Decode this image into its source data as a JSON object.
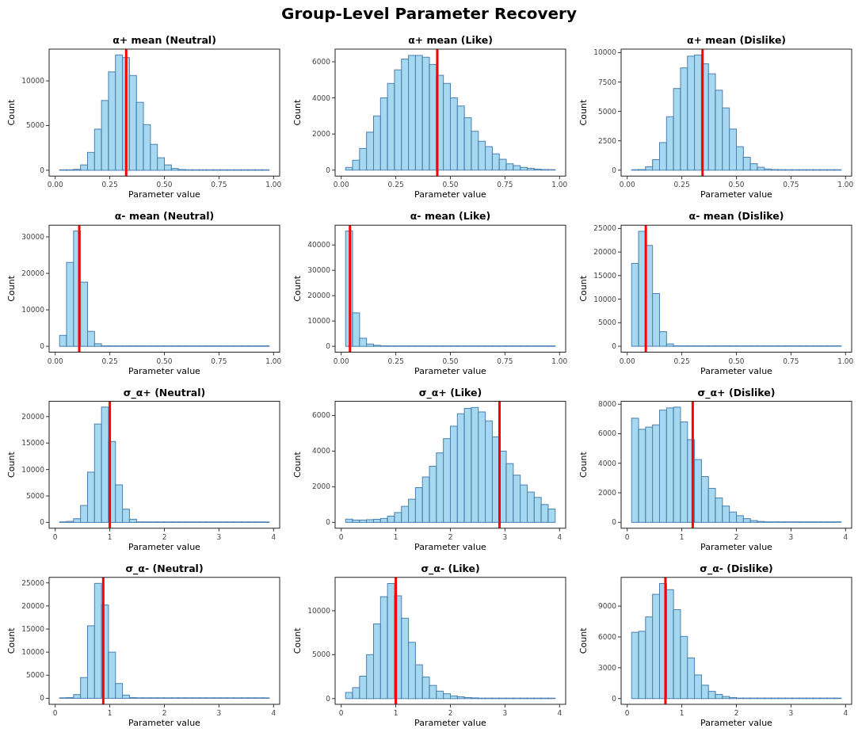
{
  "chart_data": [
    {
      "type": "histogram",
      "title": "α+ mean (Neutral)",
      "xlabel": "Parameter value",
      "ylabel": "Count",
      "annotations": [
        "Group-Level Parameter Recovery"
      ],
      "color": "#a6d9ef",
      "grid": false,
      "bins": [
        0.02,
        0.052,
        0.084,
        0.116,
        0.148,
        0.18,
        0.212,
        0.244,
        0.276,
        0.308,
        0.34,
        0.372,
        0.404,
        0.436,
        0.468,
        0.5,
        0.532,
        0.564,
        0.596,
        0.628,
        0.66,
        0.692,
        0.724,
        0.756,
        0.788,
        0.82,
        0.852,
        0.884,
        0.916,
        0.948,
        0.98
      ],
      "values": [
        10,
        20,
        100,
        600,
        2000,
        4600,
        7800,
        11000,
        12900,
        12600,
        10600,
        7600,
        5100,
        2900,
        1400,
        600,
        200,
        80,
        50,
        30,
        20,
        10,
        10,
        0,
        0,
        0,
        0,
        0,
        0,
        0
      ],
      "xlim": [
        -0.028,
        1.028
      ],
      "xticks": [
        {
          "value": 0,
          "label": "0.00"
        },
        {
          "value": 0.25,
          "label": "0.25"
        },
        {
          "value": 0.5,
          "label": "0.50"
        },
        {
          "value": 0.75,
          "label": "0.75"
        },
        {
          "value": 1,
          "label": "1.00"
        }
      ],
      "ylim": [
        -650,
        13550
      ],
      "yticks": [
        0,
        5000,
        10000
      ],
      "ref_lines": [
        {
          "axis": "x",
          "value": 0.325,
          "color": "#ff0000"
        }
      ]
    },
    {
      "type": "histogram",
      "title": "α+ mean (Like)",
      "xlabel": "Parameter value",
      "ylabel": "Count",
      "color": "#a6d9ef",
      "grid": false,
      "bins": [
        0.02,
        0.052,
        0.084,
        0.116,
        0.148,
        0.18,
        0.212,
        0.244,
        0.276,
        0.308,
        0.34,
        0.372,
        0.404,
        0.436,
        0.468,
        0.5,
        0.532,
        0.564,
        0.596,
        0.628,
        0.66,
        0.692,
        0.724,
        0.756,
        0.788,
        0.82,
        0.852,
        0.884,
        0.916,
        0.948,
        0.98
      ],
      "values": [
        150,
        550,
        1200,
        2100,
        3000,
        4000,
        4800,
        5550,
        6150,
        6350,
        6350,
        6250,
        5850,
        5250,
        4800,
        4000,
        3550,
        2900,
        2150,
        1600,
        1300,
        900,
        600,
        350,
        250,
        150,
        100,
        50,
        30,
        10
      ],
      "xlim": [
        -0.028,
        1.028
      ],
      "xticks": [
        {
          "value": 0,
          "label": "0.00"
        },
        {
          "value": 0.25,
          "label": "0.25"
        },
        {
          "value": 0.5,
          "label": "0.50"
        },
        {
          "value": 0.75,
          "label": "0.75"
        },
        {
          "value": 1,
          "label": "1.00"
        }
      ],
      "ylim": [
        -330,
        6700
      ],
      "yticks": [
        0,
        2000,
        4000,
        6000
      ],
      "ref_lines": [
        {
          "axis": "x",
          "value": 0.44,
          "color": "#ff0000"
        }
      ]
    },
    {
      "type": "histogram",
      "title": "α+ mean (Dislike)",
      "xlabel": "Parameter value",
      "ylabel": "Count",
      "color": "#a6d9ef",
      "grid": false,
      "bins": [
        0.02,
        0.052,
        0.084,
        0.116,
        0.148,
        0.18,
        0.212,
        0.244,
        0.276,
        0.308,
        0.34,
        0.372,
        0.404,
        0.436,
        0.468,
        0.5,
        0.532,
        0.564,
        0.596,
        0.628,
        0.66,
        0.692,
        0.724,
        0.756,
        0.788,
        0.82,
        0.852,
        0.884,
        0.916,
        0.948,
        0.98
      ],
      "values": [
        10,
        50,
        300,
        900,
        2350,
        4550,
        6950,
        8700,
        9700,
        9800,
        9050,
        8200,
        6800,
        5300,
        3500,
        2000,
        1100,
        550,
        250,
        100,
        50,
        20,
        10,
        5,
        0,
        0,
        0,
        0,
        0,
        0
      ],
      "xlim": [
        -0.028,
        1.028
      ],
      "xticks": [
        {
          "value": 0,
          "label": "0.00"
        },
        {
          "value": 0.25,
          "label": "0.25"
        },
        {
          "value": 0.5,
          "label": "0.50"
        },
        {
          "value": 0.75,
          "label": "0.75"
        },
        {
          "value": 1,
          "label": "1.00"
        }
      ],
      "ylim": [
        -500,
        10300
      ],
      "yticks": [
        0,
        2500,
        5000,
        7500,
        10000
      ],
      "ref_lines": [
        {
          "axis": "x",
          "value": 0.345,
          "color": "#ff0000"
        }
      ]
    },
    {
      "type": "histogram",
      "title": "α- mean (Neutral)",
      "xlabel": "Parameter value",
      "ylabel": "Count",
      "color": "#a6d9ef",
      "grid": false,
      "bins": [
        0.02,
        0.052,
        0.084,
        0.116,
        0.148,
        0.18,
        0.212,
        0.244,
        0.276,
        0.308,
        0.34,
        0.372,
        0.404,
        0.436,
        0.468,
        0.5,
        0.532,
        0.564,
        0.596,
        0.628,
        0.66,
        0.692,
        0.724,
        0.756,
        0.788,
        0.82,
        0.852,
        0.884,
        0.916,
        0.948,
        0.98
      ],
      "values": [
        3000,
        23000,
        31600,
        17600,
        4100,
        700,
        100,
        30,
        10,
        0,
        0,
        0,
        0,
        0,
        0,
        0,
        0,
        0,
        0,
        0,
        0,
        0,
        0,
        0,
        0,
        0,
        0,
        0,
        0,
        0
      ],
      "xlim": [
        -0.028,
        1.028
      ],
      "xticks": [
        {
          "value": 0,
          "label": "0.00"
        },
        {
          "value": 0.25,
          "label": "0.25"
        },
        {
          "value": 0.5,
          "label": "0.50"
        },
        {
          "value": 0.75,
          "label": "0.75"
        },
        {
          "value": 1,
          "label": "1.00"
        }
      ],
      "ylim": [
        -1600,
        33200
      ],
      "yticks": [
        0,
        10000,
        20000,
        30000
      ],
      "ref_lines": [
        {
          "axis": "x",
          "value": 0.11,
          "color": "#ff0000"
        }
      ]
    },
    {
      "type": "histogram",
      "title": "α- mean (Like)",
      "xlabel": "Parameter value",
      "ylabel": "Count",
      "color": "#a6d9ef",
      "grid": false,
      "bins": [
        0.02,
        0.052,
        0.084,
        0.116,
        0.148,
        0.18,
        0.212,
        0.244,
        0.276,
        0.308,
        0.34,
        0.372,
        0.404,
        0.436,
        0.468,
        0.5,
        0.532,
        0.564,
        0.596,
        0.628,
        0.66,
        0.692,
        0.724,
        0.756,
        0.788,
        0.82,
        0.852,
        0.884,
        0.916,
        0.948,
        0.98
      ],
      "values": [
        45500,
        13200,
        3200,
        900,
        400,
        200,
        100,
        50,
        30,
        20,
        0,
        0,
        0,
        0,
        0,
        0,
        0,
        0,
        0,
        0,
        0,
        0,
        0,
        0,
        0,
        0,
        0,
        0,
        0,
        0
      ],
      "xlim": [
        -0.028,
        1.028
      ],
      "xticks": [
        {
          "value": 0,
          "label": "0.00"
        },
        {
          "value": 0.25,
          "label": "0.25"
        },
        {
          "value": 0.5,
          "label": "0.50"
        },
        {
          "value": 0.75,
          "label": "0.75"
        },
        {
          "value": 1,
          "label": "1.00"
        }
      ],
      "ylim": [
        -2300,
        47800
      ],
      "yticks": [
        0,
        10000,
        20000,
        30000,
        40000
      ],
      "ref_lines": [
        {
          "axis": "x",
          "value": 0.04,
          "color": "#ff0000"
        }
      ]
    },
    {
      "type": "histogram",
      "title": "α- mean (Dislike)",
      "xlabel": "Parameter value",
      "ylabel": "Count",
      "color": "#a6d9ef",
      "grid": false,
      "bins": [
        0.02,
        0.052,
        0.084,
        0.116,
        0.148,
        0.18,
        0.212,
        0.244,
        0.276,
        0.308,
        0.34,
        0.372,
        0.404,
        0.436,
        0.468,
        0.5,
        0.532,
        0.564,
        0.596,
        0.628,
        0.66,
        0.692,
        0.724,
        0.756,
        0.788,
        0.82,
        0.852,
        0.884,
        0.916,
        0.948,
        0.98
      ],
      "values": [
        17600,
        24400,
        21400,
        11200,
        3100,
        500,
        100,
        30,
        0,
        0,
        0,
        0,
        0,
        0,
        0,
        0,
        0,
        0,
        0,
        0,
        0,
        0,
        0,
        0,
        0,
        0,
        0,
        0,
        0,
        0
      ],
      "xlim": [
        -0.028,
        1.028
      ],
      "xticks": [
        {
          "value": 0,
          "label": "0.00"
        },
        {
          "value": 0.25,
          "label": "0.25"
        },
        {
          "value": 0.5,
          "label": "0.50"
        },
        {
          "value": 0.75,
          "label": "0.75"
        },
        {
          "value": 1,
          "label": "1.00"
        }
      ],
      "ylim": [
        -1250,
        25700
      ],
      "yticks": [
        0,
        5000,
        10000,
        15000,
        20000,
        25000
      ],
      "ref_lines": [
        {
          "axis": "x",
          "value": 0.085,
          "color": "#ff0000"
        }
      ]
    },
    {
      "type": "histogram",
      "title": "σ_α+ (Neutral)",
      "xlabel": "Parameter value",
      "ylabel": "Count",
      "color": "#a6d9ef",
      "grid": false,
      "bins": [
        0.08,
        0.208,
        0.336,
        0.464,
        0.592,
        0.72,
        0.848,
        0.976,
        1.104,
        1.232,
        1.36,
        1.488,
        1.616,
        1.744,
        1.872,
        2,
        2.128,
        2.256,
        2.384,
        2.512,
        2.64,
        2.768,
        2.896,
        3.024,
        3.152,
        3.28,
        3.408,
        3.536,
        3.664,
        3.792,
        3.92
      ],
      "values": [
        100,
        200,
        700,
        3200,
        9500,
        18600,
        21800,
        15300,
        7100,
        2500,
        600,
        100,
        50,
        20,
        10,
        0,
        0,
        0,
        0,
        0,
        0,
        0,
        0,
        0,
        0,
        0,
        0,
        0,
        0,
        0
      ],
      "xlim": [
        -0.112,
        4.112
      ],
      "xticks": [
        0,
        1,
        2,
        3,
        4
      ],
      "ylim": [
        -1100,
        22900
      ],
      "yticks": [
        0,
        5000,
        10000,
        15000,
        20000
      ],
      "ref_lines": [
        {
          "axis": "x",
          "value": 1.0,
          "color": "#ff0000"
        }
      ]
    },
    {
      "type": "histogram",
      "title": "σ_α+ (Like)",
      "xlabel": "Parameter value",
      "ylabel": "Count",
      "color": "#a6d9ef",
      "grid": false,
      "bins": [
        0.08,
        0.208,
        0.336,
        0.464,
        0.592,
        0.72,
        0.848,
        0.976,
        1.104,
        1.232,
        1.36,
        1.488,
        1.616,
        1.744,
        1.872,
        2,
        2.128,
        2.256,
        2.384,
        2.512,
        2.64,
        2.768,
        2.896,
        3.024,
        3.152,
        3.28,
        3.408,
        3.536,
        3.664,
        3.792,
        3.92
      ],
      "values": [
        180,
        130,
        130,
        150,
        170,
        220,
        350,
        550,
        900,
        1300,
        1950,
        2550,
        3150,
        3900,
        4700,
        5400,
        6100,
        6400,
        6450,
        6200,
        5700,
        4800,
        4000,
        3300,
        2650,
        2100,
        1700,
        1400,
        1000,
        750
      ],
      "xlim": [
        -0.112,
        4.112
      ],
      "xticks": [
        0,
        1,
        2,
        3,
        4
      ],
      "ylim": [
        -330,
        6800
      ],
      "yticks": [
        0,
        2000,
        4000,
        6000
      ],
      "ref_lines": [
        {
          "axis": "x",
          "value": 2.9,
          "color": "#ff0000"
        }
      ]
    },
    {
      "type": "histogram",
      "title": "σ_α+ (Dislike)",
      "xlabel": "Parameter value",
      "ylabel": "Count",
      "color": "#a6d9ef",
      "grid": false,
      "bins": [
        0.08,
        0.208,
        0.336,
        0.464,
        0.592,
        0.72,
        0.848,
        0.976,
        1.104,
        1.232,
        1.36,
        1.488,
        1.616,
        1.744,
        1.872,
        2,
        2.128,
        2.256,
        2.384,
        2.512,
        2.64,
        2.768,
        2.896,
        3.024,
        3.152,
        3.28,
        3.408,
        3.536,
        3.664,
        3.792,
        3.92
      ],
      "values": [
        7050,
        6300,
        6450,
        6600,
        7600,
        7750,
        7800,
        6800,
        5600,
        4250,
        3100,
        2300,
        1650,
        1100,
        700,
        450,
        250,
        120,
        60,
        30,
        20,
        10,
        5,
        0,
        0,
        0,
        0,
        0,
        0,
        0
      ],
      "xlim": [
        -0.112,
        4.112
      ],
      "xticks": [
        0,
        1,
        2,
        3,
        4
      ],
      "ylim": [
        -400,
        8200
      ],
      "yticks": [
        0,
        2000,
        4000,
        6000,
        8000
      ],
      "ref_lines": [
        {
          "axis": "x",
          "value": 1.2,
          "color": "#ff0000"
        }
      ]
    },
    {
      "type": "histogram",
      "title": "σ_α- (Neutral)",
      "xlabel": "Parameter value",
      "ylabel": "Count",
      "color": "#a6d9ef",
      "grid": false,
      "bins": [
        0.08,
        0.208,
        0.336,
        0.464,
        0.592,
        0.72,
        0.848,
        0.976,
        1.104,
        1.232,
        1.36,
        1.488,
        1.616,
        1.744,
        1.872,
        2,
        2.128,
        2.256,
        2.384,
        2.512,
        2.64,
        2.768,
        2.896,
        3.024,
        3.152,
        3.28,
        3.408,
        3.536,
        3.664,
        3.792,
        3.92
      ],
      "values": [
        20,
        150,
        800,
        4500,
        15700,
        24900,
        20200,
        10000,
        3200,
        700,
        150,
        50,
        20,
        10,
        0,
        0,
        0,
        0,
        0,
        0,
        0,
        0,
        0,
        0,
        0,
        0,
        0,
        0,
        0,
        0
      ],
      "xlim": [
        -0.112,
        4.112
      ],
      "xticks": [
        0,
        1,
        2,
        3,
        4
      ],
      "ylim": [
        -1300,
        26200
      ],
      "yticks": [
        0,
        5000,
        10000,
        15000,
        20000,
        25000
      ],
      "ref_lines": [
        {
          "axis": "x",
          "value": 0.88,
          "color": "#ff0000"
        }
      ]
    },
    {
      "type": "histogram",
      "title": "σ_α- (Like)",
      "xlabel": "Parameter value",
      "ylabel": "Count",
      "color": "#a6d9ef",
      "grid": false,
      "bins": [
        0.08,
        0.208,
        0.336,
        0.464,
        0.592,
        0.72,
        0.848,
        0.976,
        1.104,
        1.232,
        1.36,
        1.488,
        1.616,
        1.744,
        1.872,
        2,
        2.128,
        2.256,
        2.384,
        2.512,
        2.64,
        2.768,
        2.896,
        3.024,
        3.152,
        3.28,
        3.408,
        3.536,
        3.664,
        3.792,
        3.92
      ],
      "values": [
        700,
        1250,
        2550,
        5000,
        8500,
        11600,
        13100,
        11700,
        9150,
        6400,
        3850,
        2450,
        1500,
        850,
        550,
        300,
        200,
        120,
        80,
        50,
        30,
        20,
        10,
        5,
        0,
        0,
        0,
        0,
        0,
        0
      ],
      "xlim": [
        -0.112,
        4.112
      ],
      "xticks": [
        0,
        1,
        2,
        3,
        4
      ],
      "ylim": [
        -650,
        13800
      ],
      "yticks": [
        0,
        5000,
        10000
      ],
      "ref_lines": [
        {
          "axis": "x",
          "value": 1.0,
          "color": "#ff0000"
        }
      ]
    },
    {
      "type": "histogram",
      "title": "σ_α- (Dislike)",
      "xlabel": "Parameter value",
      "ylabel": "Count",
      "color": "#a6d9ef",
      "grid": false,
      "bins": [
        0.08,
        0.208,
        0.336,
        0.464,
        0.592,
        0.72,
        0.848,
        0.976,
        1.104,
        1.232,
        1.36,
        1.488,
        1.616,
        1.744,
        1.872,
        2,
        2.128,
        2.256,
        2.384,
        2.512,
        2.64,
        2.768,
        2.896,
        3.024,
        3.152,
        3.28,
        3.408,
        3.536,
        3.664,
        3.792,
        3.92
      ],
      "values": [
        6450,
        6550,
        7950,
        10150,
        11200,
        10600,
        8650,
        6050,
        3950,
        2300,
        1300,
        700,
        400,
        200,
        100,
        50,
        20,
        10,
        0,
        0,
        0,
        0,
        0,
        0,
        0,
        0,
        0,
        0,
        0,
        0
      ],
      "xlim": [
        -0.112,
        4.112
      ],
      "xticks": [
        0,
        1,
        2,
        3,
        4
      ],
      "ylim": [
        -560,
        11800
      ],
      "yticks": [
        0,
        3000,
        6000,
        9000
      ],
      "ref_lines": [
        {
          "axis": "x",
          "value": 0.7,
          "color": "#ff0000"
        }
      ]
    }
  ]
}
